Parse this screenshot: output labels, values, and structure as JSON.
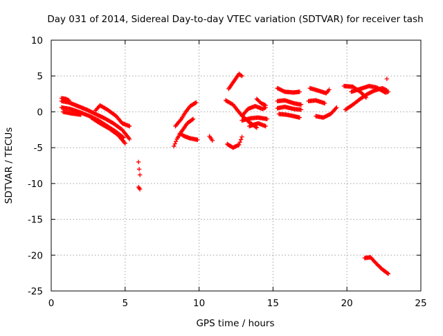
{
  "chart_data": {
    "type": "scatter",
    "title": "Day 031 of 2014, Sidereal Day-to-day VTEC variation (SDTVAR) for receiver tash",
    "xlabel": "GPS time / hours",
    "ylabel": "SDTVAR / TECUs",
    "xlim": [
      0,
      25
    ],
    "ylim": [
      -25,
      10
    ],
    "xticks": [
      0,
      5,
      10,
      15,
      20,
      25
    ],
    "yticks": [
      -25,
      -20,
      -15,
      -10,
      -5,
      0,
      5,
      10
    ],
    "xtick_labels": [
      "0",
      "5",
      "10",
      "15",
      "20",
      "25"
    ],
    "ytick_labels": [
      "-25",
      "-20",
      "-15",
      "-10",
      "-5",
      "0",
      "5",
      "10"
    ],
    "grid": true,
    "marker": "+",
    "colors": {
      "series": "#ff0000",
      "grid": "#a0a0a0",
      "axis": "#000000"
    },
    "series": [
      {
        "name": "SDTVAR",
        "tracks": [
          [
            [
              0.7,
              1.5
            ],
            [
              1.2,
              1.3
            ],
            [
              1.8,
              0.8
            ],
            [
              2.4,
              0.3
            ],
            [
              3.0,
              -0.3
            ],
            [
              3.6,
              -0.9
            ],
            [
              4.2,
              -1.6
            ],
            [
              4.8,
              -2.5
            ],
            [
              5.3,
              -3.8
            ]
          ],
          [
            [
              0.7,
              0.6
            ],
            [
              1.3,
              0.4
            ],
            [
              2.0,
              -0.1
            ],
            [
              2.6,
              -0.6
            ],
            [
              3.2,
              -1.2
            ],
            [
              3.8,
              -2.0
            ],
            [
              4.4,
              -2.8
            ],
            [
              4.9,
              -3.6
            ]
          ],
          [
            [
              0.8,
              0.0
            ],
            [
              1.3,
              -0.2
            ],
            [
              2.0,
              -0.4
            ]
          ],
          [
            [
              0.7,
              1.9
            ],
            [
              1.0,
              1.8
            ],
            [
              1.2,
              1.6
            ]
          ],
          [
            [
              2.7,
              -0.8
            ],
            [
              3.3,
              -1.6
            ],
            [
              3.9,
              -2.3
            ],
            [
              4.5,
              -3.2
            ],
            [
              5.0,
              -4.4
            ]
          ],
          [
            [
              3.0,
              0.2
            ],
            [
              3.3,
              0.9
            ],
            [
              3.8,
              0.3
            ],
            [
              4.4,
              -0.6
            ],
            [
              4.8,
              -1.6
            ],
            [
              5.3,
              -2.0
            ]
          ],
          [
            [
              5.9,
              -7.0
            ],
            [
              5.95,
              -8.0
            ],
            [
              6.0,
              -8.8
            ]
          ],
          [
            [
              5.9,
              -10.5
            ],
            [
              6.0,
              -10.8
            ]
          ],
          [
            [
              8.3,
              -4.8
            ],
            [
              8.5,
              -3.8
            ],
            [
              8.8,
              -2.8
            ],
            [
              9.2,
              -1.6
            ],
            [
              9.6,
              -1.0
            ]
          ],
          [
            [
              8.4,
              -2.0
            ],
            [
              8.8,
              -1.0
            ],
            [
              9.1,
              0.0
            ],
            [
              9.4,
              0.8
            ],
            [
              9.8,
              1.3
            ]
          ],
          [
            [
              8.7,
              -3.0
            ],
            [
              9.0,
              -3.4
            ],
            [
              9.4,
              -3.7
            ],
            [
              9.9,
              -3.9
            ]
          ],
          [
            [
              10.7,
              -3.4
            ],
            [
              10.9,
              -4.0
            ]
          ],
          [
            [
              11.9,
              -4.5
            ],
            [
              12.3,
              -5.0
            ],
            [
              12.7,
              -4.6
            ],
            [
              12.9,
              -3.5
            ]
          ],
          [
            [
              12.0,
              3.2
            ],
            [
              12.4,
              4.4
            ],
            [
              12.7,
              5.3
            ],
            [
              12.9,
              5.0
            ]
          ],
          [
            [
              11.8,
              1.6
            ],
            [
              12.3,
              1.0
            ],
            [
              12.8,
              -0.3
            ],
            [
              13.3,
              -1.3
            ],
            [
              13.9,
              -2.2
            ]
          ],
          [
            [
              12.9,
              -0.6
            ],
            [
              13.3,
              0.4
            ],
            [
              13.8,
              0.8
            ],
            [
              14.3,
              0.4
            ],
            [
              14.5,
              0.6
            ]
          ],
          [
            [
              12.9,
              -1.2
            ],
            [
              13.5,
              -0.9
            ],
            [
              14.0,
              -0.8
            ],
            [
              14.6,
              -1.0
            ]
          ],
          [
            [
              13.9,
              1.8
            ],
            [
              14.2,
              1.2
            ],
            [
              14.5,
              0.9
            ]
          ],
          [
            [
              13.4,
              -2.0
            ],
            [
              14.0,
              -1.6
            ],
            [
              14.5,
              -2.0
            ]
          ],
          [
            [
              15.3,
              3.3
            ],
            [
              15.8,
              2.8
            ],
            [
              16.4,
              2.7
            ],
            [
              16.8,
              2.8
            ]
          ],
          [
            [
              15.3,
              1.5
            ],
            [
              15.8,
              1.6
            ],
            [
              16.4,
              1.2
            ],
            [
              16.9,
              1.0
            ]
          ],
          [
            [
              15.3,
              0.5
            ],
            [
              15.8,
              0.7
            ],
            [
              16.4,
              0.4
            ],
            [
              16.9,
              0.3
            ]
          ],
          [
            [
              15.4,
              -0.3
            ],
            [
              15.9,
              -0.4
            ],
            [
              16.4,
              -0.6
            ],
            [
              16.8,
              -0.8
            ]
          ],
          [
            [
              17.5,
              3.3
            ],
            [
              18.0,
              3.0
            ],
            [
              18.6,
              2.6
            ],
            [
              18.8,
              3.1
            ]
          ],
          [
            [
              17.4,
              1.5
            ],
            [
              17.9,
              1.6
            ],
            [
              18.5,
              1.2
            ]
          ],
          [
            [
              17.9,
              -0.6
            ],
            [
              18.4,
              -0.8
            ],
            [
              18.9,
              -0.3
            ],
            [
              19.3,
              0.6
            ]
          ],
          [
            [
              19.8,
              3.6
            ],
            [
              20.4,
              3.5
            ],
            [
              20.9,
              2.8
            ],
            [
              21.3,
              2.0
            ]
          ],
          [
            [
              19.9,
              0.3
            ],
            [
              20.4,
              1.0
            ],
            [
              20.9,
              1.8
            ],
            [
              21.4,
              2.5
            ],
            [
              21.9,
              3.0
            ],
            [
              22.4,
              3.3
            ],
            [
              22.7,
              3.0
            ]
          ],
          [
            [
              20.3,
              2.8
            ],
            [
              20.9,
              3.2
            ],
            [
              21.5,
              3.6
            ],
            [
              22.0,
              3.4
            ],
            [
              22.6,
              2.7
            ],
            [
              22.8,
              2.8
            ]
          ],
          [
            [
              22.7,
              4.6
            ]
          ],
          [
            [
              21.2,
              -20.4
            ],
            [
              21.6,
              -20.3
            ],
            [
              22.0,
              -21.2
            ],
            [
              22.4,
              -22.0
            ],
            [
              22.8,
              -22.6
            ]
          ]
        ]
      }
    ]
  }
}
